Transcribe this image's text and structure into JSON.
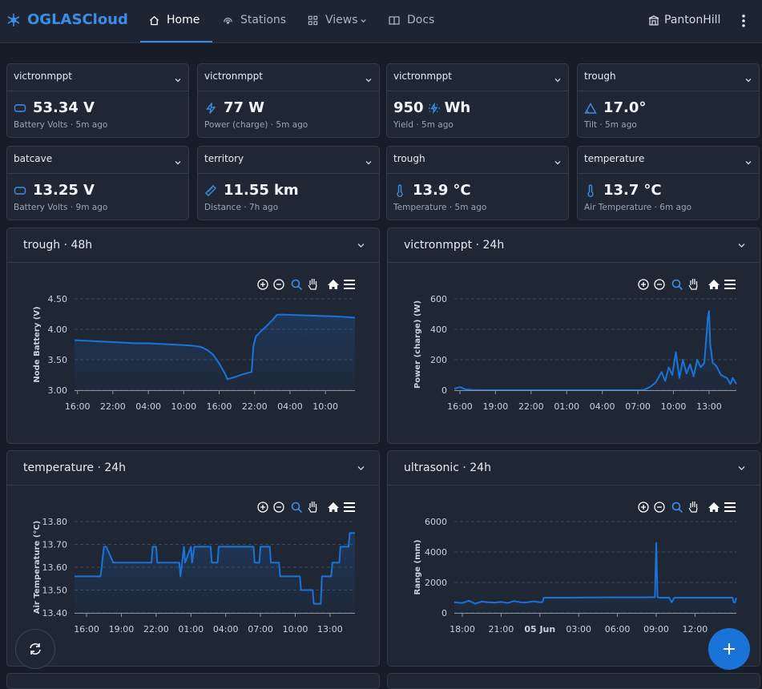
{
  "nav": {
    "brand": "OGLASCloud",
    "items": [
      "Home",
      "Stations",
      "Views",
      "Docs"
    ],
    "user": "PantonHill"
  },
  "cards": [
    {
      "node": "victronmppt",
      "value": "53.34",
      "unit": "V",
      "caption": "Battery Volts · 5m ago"
    },
    {
      "node": "victronmppt",
      "value": "77",
      "unit": "W",
      "caption": "Power (charge) · 5m ago"
    },
    {
      "node": "victronmppt",
      "value": "950",
      "unit": "Wh",
      "caption": "Yield · 5m ago"
    },
    {
      "node": "trough",
      "value": "17.0",
      "unit": "°",
      "caption": "Tilt · 5m ago"
    },
    {
      "node": "batcave",
      "value": "13.25",
      "unit": "V",
      "caption": "Battery Volts · 9m ago"
    },
    {
      "node": "territory",
      "value": "11.55",
      "unit": "km",
      "caption": "Distance · 7h ago"
    },
    {
      "node": "trough",
      "value": "13.9",
      "unit": "°C",
      "caption": "Temperature · 5m ago"
    },
    {
      "node": "temperature",
      "value": "13.7",
      "unit": "°C",
      "caption": "Air Temperature · 6m ago"
    }
  ],
  "chart_data": [
    {
      "type": "line",
      "title": "trough · 48h",
      "y_label": "Node Battery (V)",
      "color": "#1a73d9",
      "grid": true,
      "x": [
        -0.5,
        2,
        4,
        6,
        8,
        10,
        12,
        14,
        16,
        18,
        19.5,
        20.9,
        22,
        23,
        24,
        25,
        25.4,
        26.5,
        28,
        29.5,
        29.8,
        30.2,
        31,
        32,
        33,
        33.8,
        35,
        38,
        41,
        44,
        47
      ],
      "values": [
        3.82,
        3.81,
        3.8,
        3.79,
        3.78,
        3.77,
        3.77,
        3.76,
        3.75,
        3.74,
        3.73,
        3.71,
        3.66,
        3.58,
        3.44,
        3.27,
        3.18,
        3.21,
        3.26,
        3.3,
        3.72,
        3.88,
        3.96,
        4.05,
        4.15,
        4.24,
        4.24,
        4.23,
        4.22,
        4.21,
        4.19
      ],
      "xlim": [
        -0.5,
        47
      ],
      "ylim": [
        3.0,
        4.5
      ],
      "xticks": [
        {
          "value": 0,
          "label": "16:00"
        },
        {
          "value": 6,
          "label": "22:00"
        },
        {
          "value": 12,
          "label": "04:00"
        },
        {
          "value": 18,
          "label": "10:00"
        },
        {
          "value": 24,
          "label": "16:00"
        },
        {
          "value": 30,
          "label": "22:00"
        },
        {
          "value": 36,
          "label": "04:00"
        },
        {
          "value": 42,
          "label": "10:00"
        }
      ],
      "yticks": [
        {
          "value": 3.0,
          "label": "3.00"
        },
        {
          "value": 3.5,
          "label": "3.50"
        },
        {
          "value": 4.0,
          "label": "4.00"
        },
        {
          "value": 4.5,
          "label": "4.50"
        }
      ]
    },
    {
      "type": "line",
      "title": "victronmppt · 24h",
      "y_label": "Power (charge) (W)",
      "color": "#1a73d9",
      "grid": true,
      "x": [
        -0.47,
        0,
        0.5,
        1,
        2,
        4,
        8,
        12,
        15,
        15.5,
        16,
        16.5,
        17,
        17.3,
        17.6,
        17.9,
        18.2,
        18.5,
        18.8,
        19.1,
        19.4,
        19.7,
        20,
        20.3,
        20.6,
        20.9,
        21,
        21.1,
        21.3,
        21.6,
        22,
        22.5,
        22.8,
        23,
        23.3
      ],
      "values": [
        10,
        20,
        5,
        2,
        0,
        0,
        0,
        0,
        0,
        2,
        20,
        50,
        120,
        60,
        150,
        100,
        250,
        80,
        200,
        110,
        170,
        90,
        200,
        150,
        180,
        480,
        520,
        300,
        180,
        160,
        100,
        80,
        40,
        80,
        40
      ],
      "xlim": [
        -0.47,
        23.3
      ],
      "ylim": [
        0,
        600
      ],
      "xticks": [
        {
          "value": 0,
          "label": "16:00"
        },
        {
          "value": 3,
          "label": "19:00"
        },
        {
          "value": 6,
          "label": "22:00"
        },
        {
          "value": 9,
          "label": "01:00"
        },
        {
          "value": 12,
          "label": "04:00"
        },
        {
          "value": 15,
          "label": "07:00"
        },
        {
          "value": 18,
          "label": "10:00"
        },
        {
          "value": 21,
          "label": "13:00"
        }
      ],
      "yticks": [
        0,
        200,
        400,
        600
      ]
    },
    {
      "type": "line",
      "title": "temperature · 24h",
      "y_label": "Air Temperature (°C)",
      "color": "#1a73d9",
      "grid": true,
      "x": [
        -1.04,
        1.2,
        1.3,
        1.5,
        1.7,
        2.3,
        2.4,
        5.6,
        5.7,
        6.0,
        6.1,
        8.0,
        8.1,
        8.4,
        8.5,
        9.0,
        9.1,
        9.3,
        9.4,
        10.7,
        10.8,
        11.3,
        11.4,
        14.4,
        14.5,
        14.9,
        15.0,
        15.8,
        15.9,
        16.6,
        16.7,
        18.4,
        18.5,
        19.5,
        19.6,
        20.2,
        20.3,
        21.1,
        21.2,
        21.8,
        21.9,
        22.6,
        22.7,
        23.15
      ],
      "values": [
        13.56,
        13.56,
        13.6,
        13.69,
        13.69,
        13.62,
        13.62,
        13.62,
        13.69,
        13.69,
        13.62,
        13.62,
        13.56,
        13.69,
        13.62,
        13.69,
        13.62,
        13.69,
        13.69,
        13.69,
        13.62,
        13.62,
        13.69,
        13.69,
        13.62,
        13.62,
        13.69,
        13.69,
        13.62,
        13.62,
        13.56,
        13.56,
        13.5,
        13.5,
        13.44,
        13.44,
        13.56,
        13.56,
        13.62,
        13.62,
        13.69,
        13.69,
        13.75,
        13.75
      ],
      "xlim": [
        -1.04,
        23.15
      ],
      "ylim": [
        13.4,
        13.8
      ],
      "xticks": [
        {
          "value": 0,
          "label": "16:00"
        },
        {
          "value": 3,
          "label": "19:00"
        },
        {
          "value": 6,
          "label": "22:00"
        },
        {
          "value": 9,
          "label": "01:00"
        },
        {
          "value": 12,
          "label": "04:00"
        },
        {
          "value": 15,
          "label": "07:00"
        },
        {
          "value": 18,
          "label": "10:00"
        },
        {
          "value": 21,
          "label": "13:00"
        }
      ],
      "yticks": [
        {
          "value": 13.4,
          "label": "13.40"
        },
        {
          "value": 13.5,
          "label": "13.50"
        },
        {
          "value": 13.6,
          "label": "13.60"
        },
        {
          "value": 13.7,
          "label": "13.70"
        },
        {
          "value": 13.8,
          "label": "13.80"
        }
      ]
    },
    {
      "type": "line",
      "title": "ultrasonic · 24h",
      "y_label": "Range (mm)",
      "color": "#1a73d9",
      "grid": true,
      "x": [
        -0.62,
        0,
        0.5,
        1,
        1.5,
        2,
        2.5,
        3,
        3.5,
        4,
        4.5,
        5,
        5.5,
        6,
        6.2,
        6.3,
        8,
        10,
        12,
        14,
        14.9,
        15.0,
        15.1,
        15.2,
        16.0,
        16.2,
        16.4,
        17,
        19,
        20.9,
        21.0,
        21.1,
        21.2
      ],
      "values": [
        700,
        650,
        800,
        600,
        750,
        700,
        680,
        720,
        650,
        780,
        700,
        690,
        760,
        700,
        720,
        1000,
        1000,
        1010,
        1020,
        1020,
        1030,
        4600,
        1050,
        1000,
        1000,
        700,
        1000,
        1000,
        1000,
        1000,
        700,
        700,
        1000
      ],
      "xlim": [
        -0.62,
        21.2
      ],
      "ylim": [
        0,
        6000
      ],
      "xticks": [
        {
          "value": 0,
          "label": "18:00"
        },
        {
          "value": 3,
          "label": "21:00"
        },
        {
          "value": 6,
          "label": "05 Jun"
        },
        {
          "value": 9,
          "label": "03:00"
        },
        {
          "value": 12,
          "label": "06:00"
        },
        {
          "value": 15,
          "label": "09:00"
        },
        {
          "value": 18,
          "label": "12:00"
        }
      ],
      "yticks": [
        0,
        2000,
        4000,
        6000
      ]
    }
  ]
}
